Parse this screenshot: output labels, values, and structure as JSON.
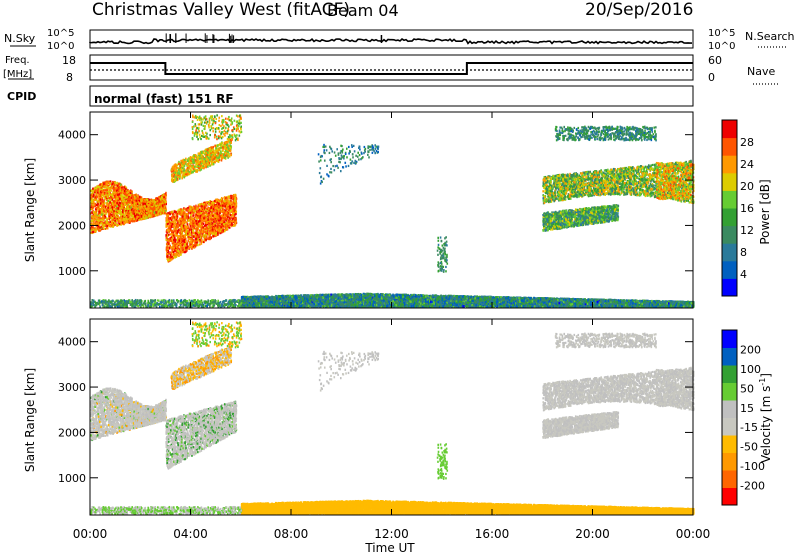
{
  "header": {
    "station": "Christmas Valley West (fitACF)",
    "beam": "Beam 04",
    "date": "20/Sep/2016"
  },
  "colors": {
    "power_scale": [
      "#0000ff",
      "#0060c0",
      "#2a7a9a",
      "#3a8a60",
      "#33a033",
      "#66cc33",
      "#ddcc00",
      "#ff9900",
      "#ff5500",
      "#ee0000"
    ],
    "velocity_scale": [
      "#ff0000",
      "#ff6600",
      "#ff9900",
      "#ffbb00",
      "#c8c8c0",
      "#c0c0c0",
      "#66cc33",
      "#33a033",
      "#0060c0",
      "#0000ff"
    ]
  },
  "chart_data": [
    {
      "type": "line",
      "name": "noise-panel",
      "left_label": "N.Sky",
      "right_label": "N.Search",
      "left_ticks": [
        "10^5",
        "10^0"
      ],
      "right_ticks": [
        "10^5",
        "10^0"
      ]
    },
    {
      "type": "line",
      "name": "frequency-panel",
      "left_label_top": "Freq.",
      "left_label_bottom": "[MHz]",
      "right_label": "Nave",
      "left_ticks": [
        "18",
        "8"
      ],
      "right_ticks": [
        "60",
        "0"
      ],
      "freq_steps": [
        {
          "x0": 0,
          "x1": 3,
          "level": "high"
        },
        {
          "x0": 3,
          "x1": 15,
          "level": "low"
        },
        {
          "x0": 15,
          "x1": 24,
          "level": "high"
        }
      ]
    },
    {
      "type": "table",
      "name": "cpid-panel",
      "label": "CPID",
      "mode": "normal (fast) 151 RF"
    },
    {
      "type": "heatmap",
      "name": "power-panel",
      "ylabel": "Slant Range [km]",
      "yticks": [
        "4000",
        "3000",
        "2000",
        "1000"
      ],
      "ylim": [
        180,
        4500
      ],
      "xlim": [
        0,
        24
      ],
      "colorbar_label": "Power [dB]",
      "colorbar_ticks": [
        "28",
        "24",
        "20",
        "16",
        "12",
        "8",
        "4"
      ],
      "clim": [
        0,
        32
      ]
    },
    {
      "type": "heatmap",
      "name": "velocity-panel",
      "ylabel": "Slant Range [km]",
      "yticks": [
        "4000",
        "3000",
        "2000",
        "1000"
      ],
      "ylim": [
        180,
        4500
      ],
      "xlim": [
        0,
        24
      ],
      "xlabel": "Time UT",
      "xticks": [
        "00:00",
        "04:00",
        "08:00",
        "12:00",
        "16:00",
        "20:00",
        "00:00"
      ],
      "colorbar_label_main": "Velocity [m s",
      "colorbar_label_sup": "-1",
      "colorbar_label_end": "]",
      "colorbar_ticks": [
        "200",
        "100",
        "50",
        "15",
        "-15",
        "-50",
        "-100",
        "-200"
      ],
      "clim": [
        -250,
        250
      ]
    }
  ]
}
